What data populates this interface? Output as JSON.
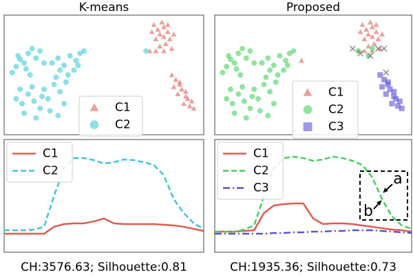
{
  "chart_data": [
    {
      "type": "scatter",
      "title": "K-means",
      "xlim": [
        0,
        100
      ],
      "ylim": [
        0,
        100
      ],
      "series": [
        {
          "name": "C1",
          "color": "#e07068",
          "marker": "triangle",
          "x": [
            75,
            77,
            79,
            80,
            82,
            78,
            76,
            80,
            83,
            81,
            78,
            84,
            80,
            76,
            73,
            82,
            85,
            74,
            84,
            86,
            88,
            85,
            89,
            91,
            87,
            92,
            94,
            90,
            95,
            93,
            88,
            91
          ],
          "y": [
            92,
            88,
            94,
            90,
            86,
            84,
            80,
            82,
            80,
            76,
            74,
            72,
            70,
            70,
            70,
            92,
            84,
            86,
            50,
            46,
            44,
            40,
            38,
            36,
            34,
            30,
            28,
            26,
            22,
            24,
            42,
            32
          ]
        },
        {
          "name": "C2",
          "color": "#4fd0dc",
          "marker": "circle",
          "x": [
            4,
            6,
            8,
            10,
            12,
            14,
            11,
            16,
            18,
            13,
            20,
            7,
            24,
            27,
            30,
            33,
            36,
            38,
            40,
            28,
            32,
            35,
            26,
            37,
            6,
            9,
            12,
            15,
            18,
            20,
            22,
            25,
            28,
            30,
            10,
            16,
            23,
            27,
            14,
            8,
            31,
            19,
            71
          ],
          "y": [
            52,
            57,
            63,
            60,
            68,
            72,
            55,
            64,
            70,
            50,
            60,
            66,
            60,
            64,
            58,
            66,
            62,
            68,
            70,
            54,
            50,
            54,
            48,
            58,
            30,
            26,
            34,
            28,
            22,
            38,
            30,
            42,
            36,
            26,
            18,
            14,
            20,
            16,
            40,
            38,
            44,
            32,
            70
          ]
        }
      ]
    },
    {
      "type": "scatter",
      "title": "Proposed",
      "xlim": [
        0,
        100
      ],
      "ylim": [
        0,
        100
      ],
      "series": [
        {
          "name": "C1",
          "color": "#e07068",
          "marker": "triangle",
          "x": [
            75,
            77,
            79,
            80,
            82,
            78,
            76,
            80,
            83,
            81,
            78,
            84,
            80,
            76,
            73,
            82,
            85,
            74,
            44
          ],
          "y": [
            92,
            88,
            94,
            90,
            86,
            84,
            80,
            82,
            80,
            76,
            74,
            72,
            70,
            70,
            70,
            92,
            84,
            86,
            62
          ]
        },
        {
          "name": "C2",
          "color": "#55d66b",
          "marker": "circle",
          "x": [
            4,
            6,
            8,
            10,
            12,
            14,
            11,
            16,
            18,
            13,
            20,
            7,
            24,
            27,
            30,
            33,
            36,
            38,
            40,
            28,
            32,
            35,
            26,
            37,
            6,
            9,
            12,
            15,
            18,
            20,
            22,
            25,
            28,
            30,
            10,
            16,
            23,
            27,
            14,
            8,
            31,
            19,
            73,
            78,
            80
          ],
          "y": [
            52,
            57,
            63,
            60,
            68,
            72,
            55,
            64,
            70,
            50,
            60,
            66,
            60,
            64,
            58,
            66,
            62,
            68,
            70,
            54,
            50,
            54,
            48,
            58,
            30,
            26,
            34,
            28,
            22,
            38,
            30,
            42,
            36,
            26,
            18,
            14,
            20,
            16,
            40,
            38,
            44,
            32,
            70,
            66,
            72
          ]
        },
        {
          "name": "C3",
          "color": "#6a5fdc",
          "marker": "square",
          "x": [
            84,
            86,
            88,
            85,
            89,
            91,
            87,
            92,
            94,
            90,
            95,
            93,
            88,
            91
          ],
          "y": [
            50,
            46,
            44,
            40,
            38,
            36,
            34,
            30,
            28,
            26,
            22,
            24,
            42,
            32
          ]
        },
        {
          "color": "#777777",
          "marker": "x",
          "x": [
            70,
            74,
            79,
            83,
            86,
            87
          ],
          "y": [
            72,
            68,
            66,
            72,
            72,
            52
          ]
        }
      ]
    },
    {
      "type": "line",
      "caption": "CH:3576.63; Silhouette:0.81",
      "xlim": [
        0,
        20
      ],
      "ylim": [
        0,
        100
      ],
      "x": [
        0,
        1,
        2,
        3,
        4,
        5,
        6,
        7,
        8,
        9,
        10,
        11,
        12,
        13,
        14,
        15,
        16,
        17,
        18,
        19,
        20
      ],
      "series": [
        {
          "name": "C1",
          "color": "#e05a4e",
          "style": "solid",
          "values": [
            16.5,
            16.5,
            16.5,
            16.5,
            16.5,
            22.6,
            25,
            25.6,
            25.6,
            27.4,
            29.9,
            25.6,
            25,
            25,
            25,
            25,
            24.4,
            23.8,
            22.6,
            20.7,
            18.9
          ]
        },
        {
          "name": "C2",
          "color": "#3fc6d4",
          "style": "dashed",
          "values": [
            19.5,
            19.5,
            19.5,
            20.1,
            22.6,
            50,
            74.4,
            83.5,
            83.5,
            81.7,
            78.7,
            79.9,
            82.3,
            81.7,
            79.9,
            77.4,
            68.3,
            47,
            34.8,
            25.6,
            20.7
          ]
        }
      ]
    },
    {
      "type": "line",
      "caption": "CH:1935.36; Silhouette:0.73",
      "xlim": [
        0,
        20
      ],
      "ylim": [
        0,
        100
      ],
      "x": [
        0,
        1,
        2,
        3,
        4,
        5,
        6,
        7,
        8,
        9,
        10,
        11,
        12,
        13,
        14,
        15,
        16,
        17,
        18,
        19,
        20
      ],
      "annotations": [
        "a",
        "b"
      ],
      "series": [
        {
          "name": "C1",
          "color": "#e05a4e",
          "style": "solid",
          "values": [
            18.3,
            18.3,
            18.3,
            18.9,
            19.5,
            34.8,
            41.5,
            42.7,
            43.3,
            43.3,
            29.9,
            25,
            25.6,
            25.6,
            25,
            23.8,
            22.6,
            21.3,
            20.1,
            19.5,
            18.3
          ]
        },
        {
          "name": "C2",
          "color": "#44d05a",
          "style": "dashed",
          "values": [
            18.3,
            18.3,
            18.3,
            20.1,
            23.8,
            50,
            74.4,
            83.5,
            84.8,
            83.5,
            81.1,
            82.3,
            84.8,
            83.5,
            81.1,
            77.4,
            66.5,
            47,
            31.7,
            23.8,
            20.7
          ]
        },
        {
          "name": "C3",
          "color": "#5b4fd8",
          "style": "dashdot",
          "values": [
            16.5,
            16.5,
            16.5,
            16.5,
            16.5,
            16.5,
            17.1,
            17.1,
            17.7,
            17.7,
            18.3,
            18.3,
            18.9,
            18.9,
            19.5,
            19.5,
            19.5,
            18.9,
            18.3,
            17.7,
            17.1
          ]
        }
      ]
    }
  ]
}
